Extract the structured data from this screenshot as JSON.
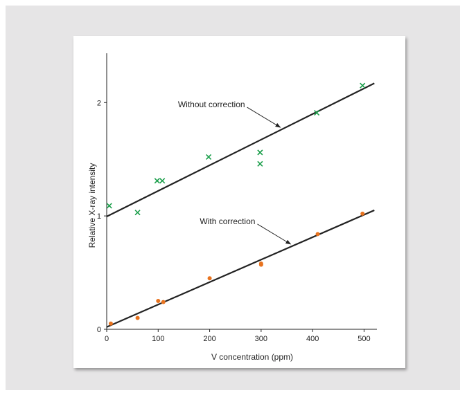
{
  "chart_data": {
    "type": "scatter",
    "title": "",
    "xlabel": "V concentration (ppm)",
    "ylabel": "Relative X-ray intensity",
    "xlim": [
      0,
      525
    ],
    "ylim": [
      0,
      2.2
    ],
    "xticks": [
      0,
      100,
      200,
      300,
      400,
      500
    ],
    "yticks": [
      0,
      1,
      2
    ],
    "grid": false,
    "legend": "none",
    "series": [
      {
        "name": "Without correction",
        "marker": "x",
        "color": "#1a9e4a",
        "points": [
          [
            5,
            1.09
          ],
          [
            60,
            1.03
          ],
          [
            98,
            1.31
          ],
          [
            108,
            1.31
          ],
          [
            198,
            1.52
          ],
          [
            298,
            1.56
          ],
          [
            298,
            1.46
          ],
          [
            408,
            1.91
          ],
          [
            497,
            2.15
          ]
        ],
        "fit": [
          [
            0,
            0.995
          ],
          [
            520,
            2.17
          ]
        ]
      },
      {
        "name": "With correction",
        "marker": "dot",
        "color": "#e8731f",
        "points": [
          [
            8,
            0.05
          ],
          [
            60,
            0.1
          ],
          [
            100,
            0.25
          ],
          [
            110,
            0.24
          ],
          [
            200,
            0.45
          ],
          [
            300,
            0.58
          ],
          [
            300,
            0.57
          ],
          [
            410,
            0.84
          ],
          [
            497,
            1.02
          ]
        ],
        "fit": [
          [
            0,
            0.02
          ],
          [
            520,
            1.05
          ]
        ]
      }
    ],
    "annotations": [
      {
        "text": "Without correction",
        "series": 0,
        "x": 340
      },
      {
        "text": "With correction",
        "series": 1,
        "x": 360
      }
    ]
  }
}
